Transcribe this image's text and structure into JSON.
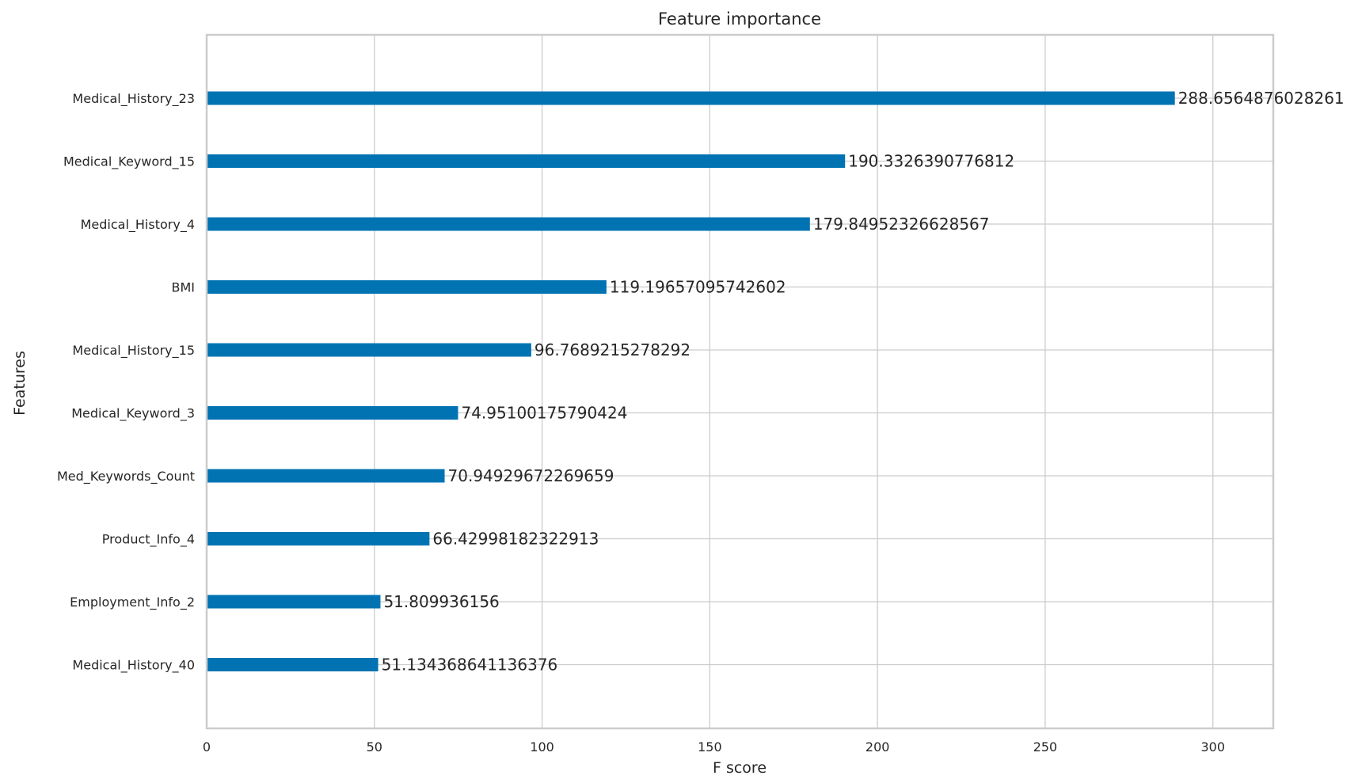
{
  "chart_data": {
    "type": "bar",
    "orientation": "horizontal",
    "title": "Feature importance",
    "xlabel": "F score",
    "ylabel": "Features",
    "xlim": [
      0,
      318
    ],
    "xticks": [
      0,
      50,
      100,
      150,
      200,
      250,
      300
    ],
    "grid": true,
    "bar_color": "#0173b2",
    "categories": [
      "Medical_History_23",
      "Medical_Keyword_15",
      "Medical_History_4",
      "BMI",
      "Medical_History_15",
      "Medical_Keyword_3",
      "Med_Keywords_Count",
      "Product_Info_4",
      "Employment_Info_2",
      "Medical_History_40"
    ],
    "values": [
      288.6564876028261,
      190.3326390776812,
      179.84952326628567,
      119.19657095742602,
      96.7689215278292,
      74.95100175790424,
      70.94929672269659,
      66.42998182322913,
      51.809936156,
      51.134368641136376
    ],
    "value_labels": [
      "288.6564876028261",
      "190.3326390776812",
      "179.84952326628567",
      "119.19657095742602",
      "96.7689215278292",
      "74.95100175790424",
      "70.94929672269659",
      "66.42998182322913",
      "51.809936156",
      "51.134368641136376"
    ]
  }
}
